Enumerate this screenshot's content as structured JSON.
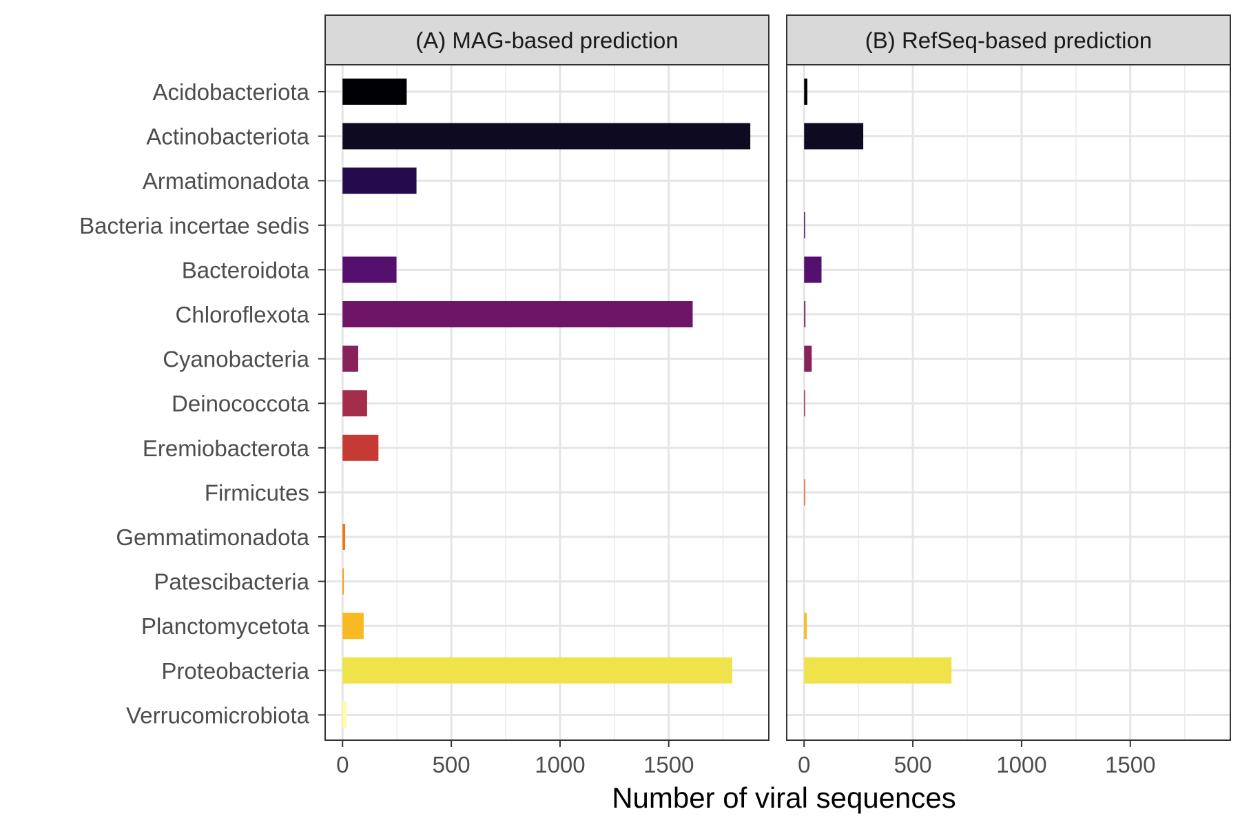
{
  "chart_data": {
    "type": "bar",
    "orientation": "horizontal",
    "xlabel": "Number of viral sequences",
    "ylabel": "",
    "xlim": [
      -80,
      1960
    ],
    "xticks": [
      0,
      500,
      1000,
      1500
    ],
    "xtick_labels": [
      "0",
      "500",
      "1000",
      "1500"
    ],
    "grid": true,
    "legend": "none",
    "categories": [
      "Acidobacteriota",
      "Actinobacteriota",
      "Armatimonadota",
      "Bacteria incertae sedis",
      "Bacteroidota",
      "Chloroflexota",
      "Cyanobacteria",
      "Deinococcota",
      "Eremiobacterota",
      "Firmicutes",
      "Gemmatimonadota",
      "Patescibacteria",
      "Planctomycetota",
      "Proteobacteria",
      "Verrucomicrobiota"
    ],
    "colors": [
      "#000004",
      "#0d0a22",
      "#230b4e",
      "#3e0a64",
      "#550f6d",
      "#6e1567",
      "#89225a",
      "#a42d4c",
      "#c53a32",
      "#e05c1d",
      "#ef7515",
      "#f99d11",
      "#f8b923",
      "#f0e24a",
      "#fcfda4"
    ],
    "panels": [
      {
        "title": "(A) MAG-based prediction",
        "values": [
          295,
          1875,
          340,
          0,
          248,
          1610,
          72,
          113,
          165,
          0,
          12,
          6,
          97,
          1792,
          18
        ]
      },
      {
        "title": "(B) RefSeq-based prediction",
        "values": [
          15,
          272,
          0,
          4,
          80,
          6,
          35,
          5,
          0,
          2,
          0,
          0,
          12,
          678,
          0
        ]
      }
    ]
  }
}
